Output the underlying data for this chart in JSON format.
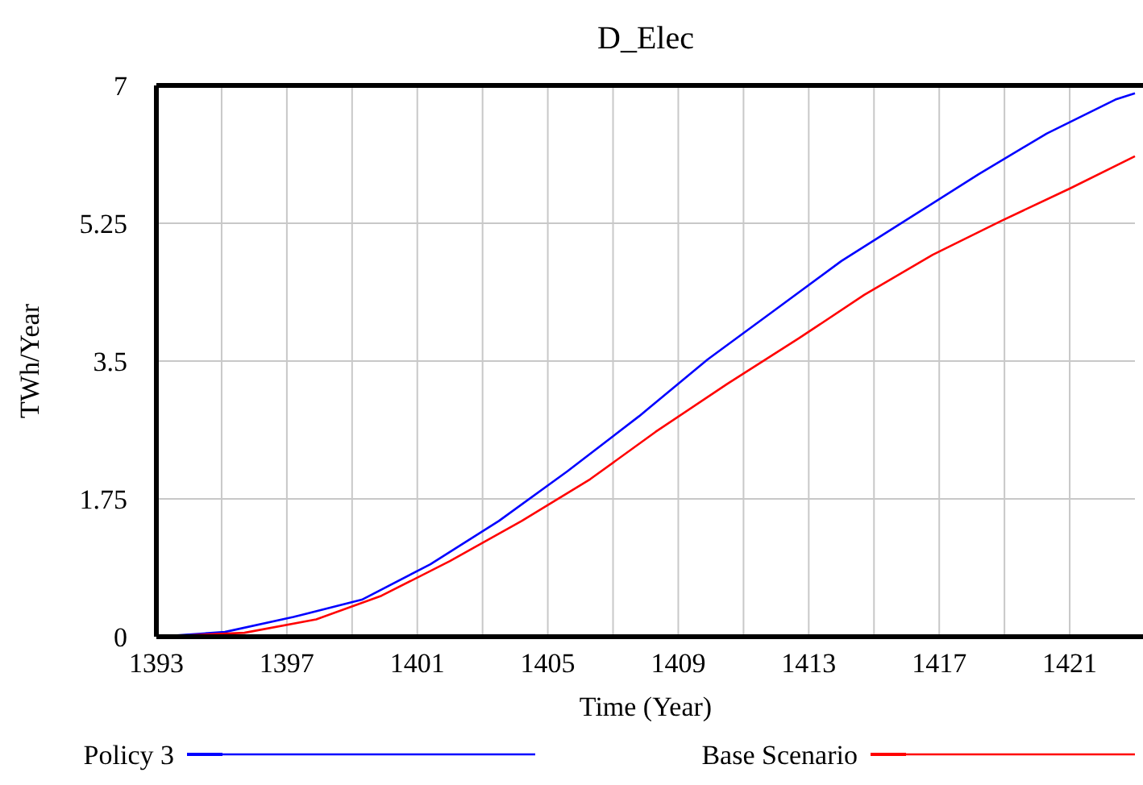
{
  "chart_data": {
    "type": "line",
    "title": "D_Elec",
    "xlabel": "Time (Year)",
    "ylabel": "TWh/Year",
    "xlim": [
      1393,
      1423
    ],
    "ylim": [
      0,
      7
    ],
    "xticks": [
      1393,
      {
        "value": 1395,
        "label": null
      },
      1397,
      {
        "value": 1399,
        "label": null
      },
      1401,
      {
        "value": 1403,
        "label": null
      },
      1405,
      {
        "value": 1407,
        "label": null
      },
      1409,
      {
        "value": 1411,
        "label": null
      },
      1413,
      {
        "value": 1415,
        "label": null
      },
      1417,
      {
        "value": 1419,
        "label": null
      },
      1421
    ],
    "yticks": [
      0,
      1.75,
      3.5,
      5.25,
      7
    ],
    "grid": true,
    "legend": "bottom",
    "marker": "none",
    "line_style": "solid",
    "series": [
      {
        "name": "Policy 3",
        "color": "#0000ff",
        "x": [
          1393,
          1395.1,
          1397.2,
          1399.3,
          1401.4,
          1403.5,
          1405.6,
          1407.8,
          1409.9,
          1411.9,
          1414,
          1416.1,
          1418.2,
          1420.3,
          1422.4,
          1423
        ],
        "values": [
          0,
          0.06,
          0.25,
          0.47,
          0.92,
          1.47,
          2.1,
          2.8,
          3.52,
          4.13,
          4.77,
          5.32,
          5.87,
          6.39,
          6.82,
          6.9
        ]
      },
      {
        "name": "Base Scenario",
        "color": "#ff0000",
        "x": [
          1393,
          1395.7,
          1397.9,
          1399.9,
          1402,
          1404.2,
          1406.3,
          1408.3,
          1410.5,
          1412.7,
          1414.7,
          1416.8,
          1418.9,
          1421,
          1423
        ],
        "values": [
          0,
          0.05,
          0.22,
          0.52,
          0.96,
          1.47,
          2,
          2.6,
          3.21,
          3.79,
          4.34,
          4.85,
          5.28,
          5.69,
          6.1
        ]
      }
    ]
  }
}
